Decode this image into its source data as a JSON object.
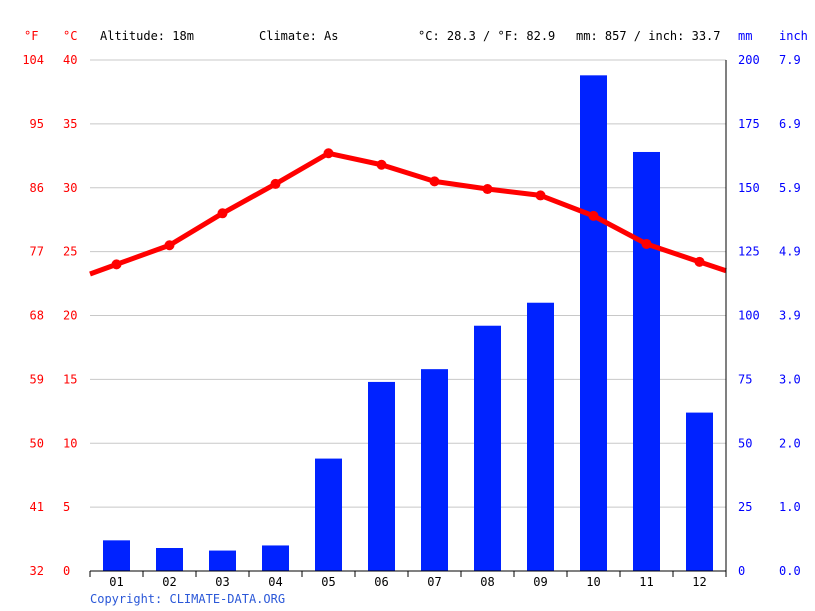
{
  "header": {
    "unit_f": "°F",
    "unit_c": "°C",
    "altitude": "Altitude: 18m",
    "climate": "Climate: As",
    "temp_summary": "°C: 28.3 / °F: 82.9",
    "precip_summary": "mm: 857 / inch: 33.7",
    "unit_mm": "mm",
    "unit_inch": "inch"
  },
  "footer": {
    "copyright": "Copyright: CLIMATE-DATA.ORG"
  },
  "colors": {
    "temperature": "#ff0000",
    "precipitation": "#0022ff",
    "axis_blue": "#0000ff",
    "grid": "#c8c8c8"
  },
  "chart_data": {
    "type": "bar",
    "categories": [
      "01",
      "02",
      "03",
      "04",
      "05",
      "06",
      "07",
      "08",
      "09",
      "10",
      "11",
      "12"
    ],
    "series": [
      {
        "type": "bar",
        "values": [
          12,
          9,
          8,
          10,
          44,
          74,
          79,
          96,
          105,
          194,
          164,
          62
        ]
      },
      {
        "type": "line",
        "values": [
          24.0,
          25.5,
          28.0,
          30.3,
          32.7,
          31.8,
          30.5,
          29.9,
          29.4,
          27.8,
          25.6,
          24.2
        ]
      }
    ],
    "axes": {
      "left_f": {
        "ticks": [
          "104",
          "95",
          "86",
          "77",
          "68",
          "59",
          "50",
          "41",
          "32"
        ]
      },
      "left_c": {
        "ticks": [
          "40",
          "35",
          "30",
          "25",
          "20",
          "15",
          "10",
          "5",
          "0"
        ],
        "ylim": [
          0,
          40
        ]
      },
      "right_mm": {
        "ticks": [
          "200",
          "175",
          "150",
          "125",
          "100",
          "75",
          "50",
          "25",
          "0"
        ],
        "ylim": [
          0,
          200
        ]
      },
      "right_inch": {
        "ticks": [
          "7.9",
          "6.9",
          "5.9",
          "4.9",
          "3.9",
          "3.0",
          "2.0",
          "1.0",
          "0.0"
        ]
      }
    },
    "grid": true
  }
}
